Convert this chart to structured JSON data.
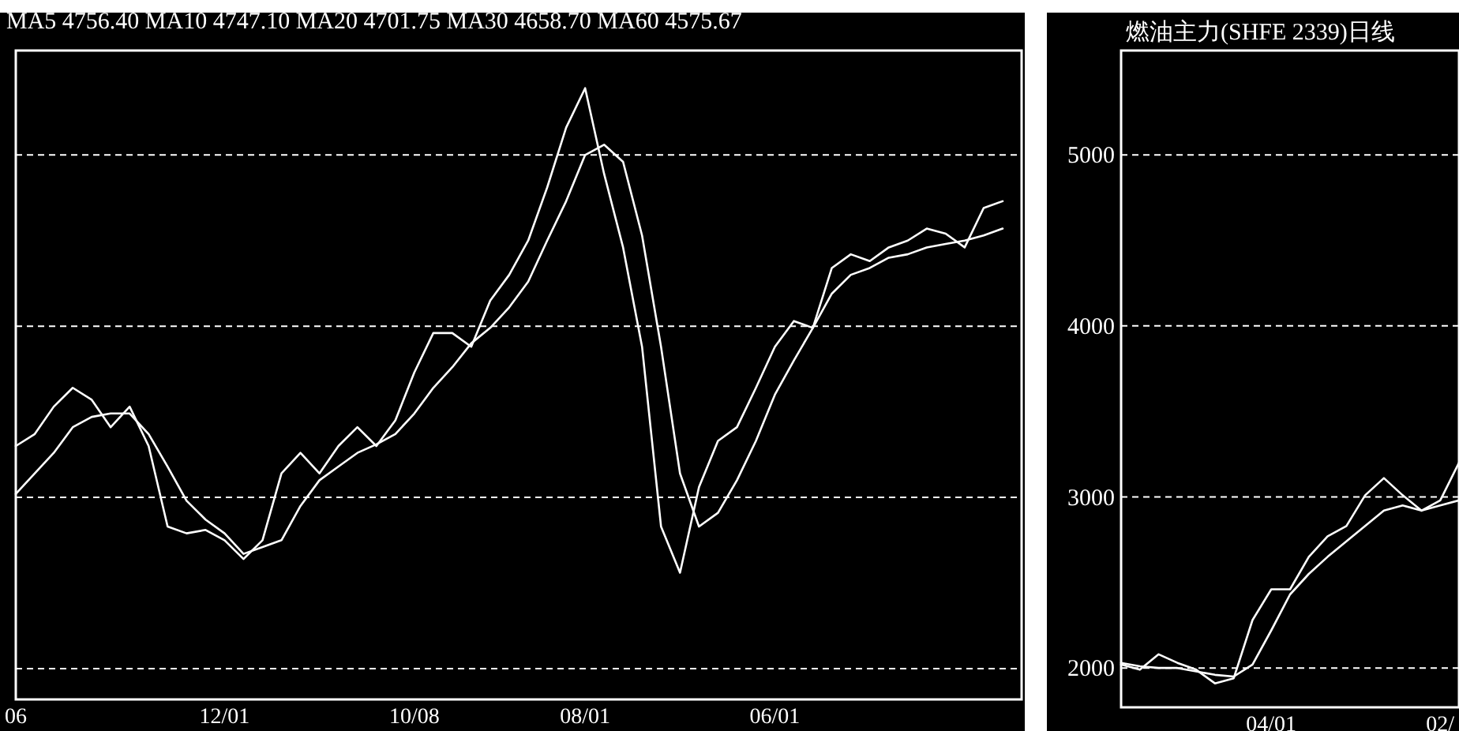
{
  "chart_data": [
    {
      "type": "line",
      "title": "MA5 4756.40 MA10 4747.10  MA20 4701.75 MA30 4658.70 MA60 4575.67",
      "tick_labels": "x",
      "grid": "y",
      "ylim": [
        1820,
        5610
      ],
      "yticks": [
        2000,
        3000,
        4000,
        5000
      ],
      "categories": [
        "06",
        null,
        null,
        null,
        null,
        null,
        null,
        null,
        null,
        null,
        null,
        "12/01",
        null,
        null,
        null,
        null,
        null,
        null,
        null,
        null,
        null,
        "10/08",
        null,
        null,
        null,
        null,
        null,
        null,
        null,
        null,
        "08/01",
        null,
        null,
        null,
        null,
        null,
        null,
        null,
        null,
        null,
        "06/01",
        null,
        null,
        null,
        null,
        null,
        null,
        null,
        null,
        null,
        null,
        null,
        null,
        null
      ],
      "series": [
        {
          "color": "#ffffff",
          "values": [
            3300,
            3370,
            3530,
            3640,
            3570,
            3410,
            3530,
            3300,
            2830,
            2790,
            2810,
            2750,
            2640,
            2750,
            3140,
            3260,
            3140,
            3300,
            3410,
            3300,
            3450,
            3730,
            3960,
            3960,
            3880,
            4150,
            4300,
            4500,
            4810,
            5160,
            5390,
            4890,
            4460,
            3880,
            2830,
            2560,
            3060,
            3330,
            3410,
            3640,
            3880,
            4030,
            3990,
            4340,
            4420,
            4380,
            4460,
            4500,
            4570,
            4540,
            4460,
            4690,
            4730,
            null
          ]
        },
        {
          "color": "#ffffff",
          "values": [
            3020,
            3140,
            3260,
            3410,
            3470,
            3490,
            3490,
            3370,
            3180,
            2980,
            2870,
            2790,
            2670,
            2710,
            2750,
            2950,
            3100,
            3180,
            3260,
            3310,
            3370,
            3490,
            3640,
            3760,
            3900,
            3990,
            4110,
            4260,
            4500,
            4730,
            5000,
            5060,
            4960,
            4530,
            3880,
            3140,
            2830,
            2910,
            3100,
            3330,
            3600,
            3800,
            3990,
            4190,
            4300,
            4340,
            4400,
            4420,
            4460,
            4480,
            4500,
            4530,
            4570,
            null
          ]
        }
      ]
    },
    {
      "type": "line",
      "title": "燃油主力(SHFE 2339)日线",
      "grid": "y",
      "ylim": [
        1770,
        5610
      ],
      "yticks": [
        2000,
        3000,
        4000,
        5000
      ],
      "categories": [
        null,
        null,
        null,
        null,
        null,
        null,
        null,
        null,
        "04/01",
        null,
        null,
        null,
        null,
        null,
        null,
        null,
        null,
        "02/",
        null
      ],
      "series": [
        {
          "color": "#ffffff",
          "values": [
            2020,
            1990,
            2080,
            2030,
            1990,
            1910,
            1940,
            2280,
            2460,
            2460,
            2650,
            2770,
            2830,
            3010,
            3110,
            3010,
            2920,
            2980,
            3200
          ]
        },
        {
          "color": "#ffffff",
          "values": [
            2030,
            2010,
            2000,
            2000,
            1980,
            1960,
            1950,
            2020,
            2220,
            2430,
            2550,
            2650,
            2740,
            2830,
            2920,
            2950,
            2920,
            2950,
            2980
          ]
        }
      ]
    }
  ]
}
